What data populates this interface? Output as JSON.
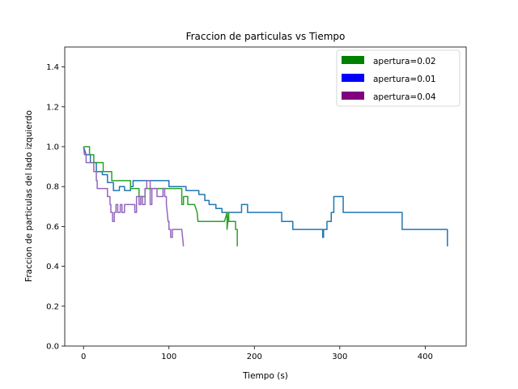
{
  "chart_data": {
    "type": "line",
    "title": "Fraccion de particulas vs Tiempo",
    "xlabel": "Tiempo (s)",
    "ylabel": "Fraccion de particulas del lado izquierdo",
    "xlim": [
      -22,
      448
    ],
    "ylim": [
      0.0,
      1.5
    ],
    "xticks": [
      0,
      100,
      200,
      300,
      400
    ],
    "yticks": [
      0.0,
      0.2,
      0.4,
      0.6,
      0.8,
      1.0,
      1.2,
      1.4
    ],
    "grid": false,
    "legend_position": "top-right",
    "legend": [
      {
        "label": "apertura=0.02",
        "color": "#008000"
      },
      {
        "label": "apertura=0.01",
        "color": "#0000ff"
      },
      {
        "label": "apertura=0.04",
        "color": "#800080"
      }
    ],
    "series": [
      {
        "color": "#1f77b4",
        "points": [
          [
            0,
            1.0
          ],
          [
            3,
            0.96
          ],
          [
            8,
            0.96
          ],
          [
            8,
            0.92
          ],
          [
            15,
            0.92
          ],
          [
            15,
            0.875
          ],
          [
            22,
            0.875
          ],
          [
            22,
            0.86
          ],
          [
            28,
            0.86
          ],
          [
            28,
            0.82
          ],
          [
            35,
            0.82
          ],
          [
            35,
            0.78
          ],
          [
            42,
            0.78
          ],
          [
            42,
            0.8
          ],
          [
            48,
            0.8
          ],
          [
            48,
            0.78
          ],
          [
            55,
            0.78
          ],
          [
            55,
            0.8
          ],
          [
            58,
            0.8
          ],
          [
            58,
            0.83
          ],
          [
            100,
            0.83
          ],
          [
            100,
            0.8
          ],
          [
            120,
            0.8
          ],
          [
            120,
            0.78
          ],
          [
            135,
            0.78
          ],
          [
            135,
            0.76
          ],
          [
            142,
            0.76
          ],
          [
            142,
            0.73
          ],
          [
            147,
            0.73
          ],
          [
            147,
            0.71
          ],
          [
            155,
            0.71
          ],
          [
            155,
            0.69
          ],
          [
            162,
            0.69
          ],
          [
            162,
            0.67
          ],
          [
            185,
            0.67
          ],
          [
            185,
            0.71
          ],
          [
            192,
            0.71
          ],
          [
            192,
            0.67
          ],
          [
            232,
            0.67
          ],
          [
            232,
            0.625
          ],
          [
            245,
            0.625
          ],
          [
            245,
            0.585
          ],
          [
            280,
            0.585
          ],
          [
            280,
            0.545
          ],
          [
            281,
            0.545
          ],
          [
            281,
            0.585
          ],
          [
            285,
            0.585
          ],
          [
            285,
            0.625
          ],
          [
            290,
            0.625
          ],
          [
            290,
            0.67
          ],
          [
            293,
            0.67
          ],
          [
            293,
            0.75
          ],
          [
            304,
            0.75
          ],
          [
            304,
            0.67
          ],
          [
            373,
            0.67
          ],
          [
            373,
            0.585
          ],
          [
            426,
            0.585
          ],
          [
            426,
            0.5
          ]
        ]
      },
      {
        "color": "#2ca02c",
        "points": [
          [
            0,
            1.0
          ],
          [
            7,
            1.0
          ],
          [
            7,
            0.96
          ],
          [
            12,
            0.96
          ],
          [
            12,
            0.92
          ],
          [
            23,
            0.92
          ],
          [
            23,
            0.875
          ],
          [
            33,
            0.875
          ],
          [
            33,
            0.83
          ],
          [
            55,
            0.83
          ],
          [
            55,
            0.79
          ],
          [
            65,
            0.79
          ],
          [
            65,
            0.75
          ],
          [
            72,
            0.75
          ],
          [
            72,
            0.79
          ],
          [
            115,
            0.79
          ],
          [
            115,
            0.71
          ],
          [
            117,
            0.71
          ],
          [
            117,
            0.75
          ],
          [
            122,
            0.75
          ],
          [
            122,
            0.71
          ],
          [
            130,
            0.71
          ],
          [
            133,
            0.67
          ],
          [
            134,
            0.625
          ],
          [
            165,
            0.625
          ],
          [
            168,
            0.67
          ],
          [
            168,
            0.585
          ],
          [
            170,
            0.67
          ],
          [
            170,
            0.625
          ],
          [
            178,
            0.625
          ],
          [
            178,
            0.585
          ],
          [
            180,
            0.585
          ],
          [
            180,
            0.5
          ]
        ]
      },
      {
        "color": "#9467bd",
        "points": [
          [
            0,
            1.0
          ],
          [
            1,
            0.96
          ],
          [
            3,
            0.96
          ],
          [
            3,
            0.92
          ],
          [
            12,
            0.92
          ],
          [
            12,
            0.875
          ],
          [
            15,
            0.875
          ],
          [
            15,
            0.83
          ],
          [
            16,
            0.83
          ],
          [
            16,
            0.79
          ],
          [
            28,
            0.79
          ],
          [
            28,
            0.75
          ],
          [
            31,
            0.75
          ],
          [
            31,
            0.71
          ],
          [
            32,
            0.71
          ],
          [
            32,
            0.67
          ],
          [
            34,
            0.67
          ],
          [
            34,
            0.625
          ],
          [
            36,
            0.625
          ],
          [
            36,
            0.67
          ],
          [
            38,
            0.67
          ],
          [
            38,
            0.71
          ],
          [
            40,
            0.71
          ],
          [
            40,
            0.67
          ],
          [
            43,
            0.67
          ],
          [
            43,
            0.71
          ],
          [
            45,
            0.71
          ],
          [
            45,
            0.67
          ],
          [
            48,
            0.67
          ],
          [
            48,
            0.71
          ],
          [
            60,
            0.71
          ],
          [
            60,
            0.67
          ],
          [
            62,
            0.67
          ],
          [
            62,
            0.75
          ],
          [
            65,
            0.75
          ],
          [
            65,
            0.71
          ],
          [
            67,
            0.71
          ],
          [
            67,
            0.75
          ],
          [
            69,
            0.75
          ],
          [
            69,
            0.71
          ],
          [
            72,
            0.71
          ],
          [
            72,
            0.79
          ],
          [
            74,
            0.79
          ],
          [
            74,
            0.83
          ],
          [
            78,
            0.83
          ],
          [
            78,
            0.71
          ],
          [
            80,
            0.71
          ],
          [
            80,
            0.79
          ],
          [
            86,
            0.79
          ],
          [
            86,
            0.75
          ],
          [
            93,
            0.75
          ],
          [
            93,
            0.79
          ],
          [
            95,
            0.79
          ],
          [
            95,
            0.75
          ],
          [
            97,
            0.75
          ],
          [
            97,
            0.71
          ],
          [
            98,
            0.67
          ],
          [
            99,
            0.625
          ],
          [
            100,
            0.625
          ],
          [
            100,
            0.585
          ],
          [
            102,
            0.585
          ],
          [
            102,
            0.545
          ],
          [
            104,
            0.545
          ],
          [
            104,
            0.585
          ],
          [
            115,
            0.585
          ],
          [
            117,
            0.5
          ]
        ]
      }
    ]
  }
}
